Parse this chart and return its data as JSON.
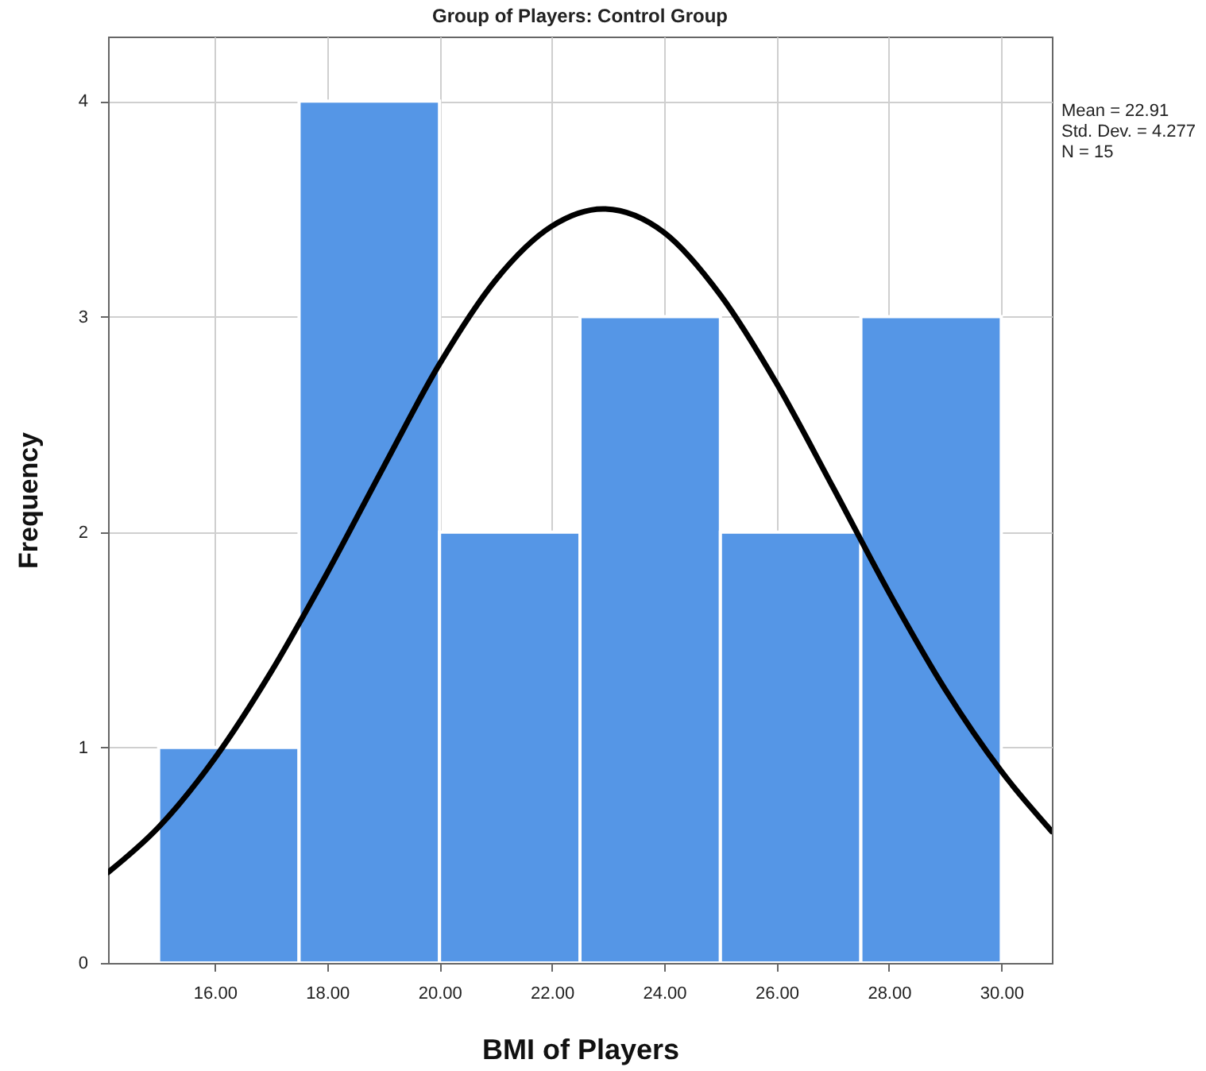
{
  "chart_data": {
    "type": "histogram",
    "title": "Group  of Players: Control Group",
    "xlabel": "BMI  of Players",
    "ylabel": "Frequency",
    "bins": [
      15,
      17.5,
      20,
      22.5,
      25,
      27.5,
      30
    ],
    "values": [
      1,
      4,
      2,
      3,
      2,
      3
    ],
    "color": "#5596e6",
    "series": [
      {
        "type": "line",
        "color": "#000000",
        "x": [
          14.1,
          15,
          16,
          17,
          18,
          19,
          20,
          21,
          22,
          22.91,
          24,
          25,
          26,
          27,
          28,
          29,
          30,
          30.9
        ],
        "values": [
          0.42,
          0.63,
          0.95,
          1.35,
          1.81,
          2.3,
          2.78,
          3.17,
          3.42,
          3.5,
          3.39,
          3.1,
          2.69,
          2.21,
          1.72,
          1.27,
          0.89,
          0.61
        ]
      }
    ],
    "marker": "none",
    "line_style": "solid",
    "xlim": [
      14.1,
      30.9
    ],
    "xticks": [
      {
        "value": 16,
        "label": "16.00"
      },
      {
        "value": 18,
        "label": "18.00"
      },
      {
        "value": 20,
        "label": "20.00"
      },
      {
        "value": 22,
        "label": "22.00"
      },
      {
        "value": 24,
        "label": "24.00"
      },
      {
        "value": 26,
        "label": "26.00"
      },
      {
        "value": 28,
        "label": "28.00"
      },
      {
        "value": 30,
        "label": "30.00"
      }
    ],
    "ylim": [
      0,
      4.3
    ],
    "yticks": [
      0,
      1,
      2,
      3,
      4
    ],
    "grid": true,
    "annotations": [
      "Mean = 22.91",
      "Std. Dev. = 4.277",
      "N = 15"
    ]
  }
}
